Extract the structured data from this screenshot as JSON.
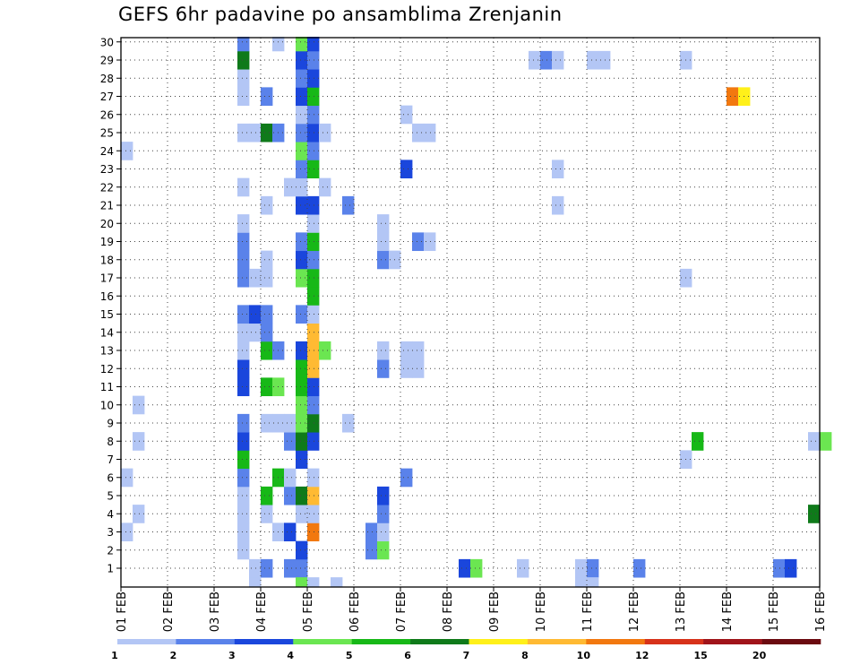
{
  "chart_data": {
    "type": "heatmap",
    "title": "GEFS 6hr padavine po ansamblima Zrenjanin",
    "x_tick_labels": [
      "01 FEB",
      "02 FEB",
      "03 FEB",
      "04 FEB",
      "05 FEB",
      "06 FEB",
      "07 FEB",
      "08 FEB",
      "09 FEB",
      "10 FEB",
      "11 FEB",
      "12 FEB",
      "13 FEB",
      "14 FEB",
      "15 FEB",
      "16 FEB"
    ],
    "y_members": [
      1,
      2,
      3,
      4,
      5,
      6,
      7,
      8,
      9,
      10,
      11,
      12,
      13,
      14,
      15,
      16,
      17,
      18,
      19,
      20,
      21,
      22,
      23,
      24,
      25,
      26,
      27,
      28,
      29,
      30
    ],
    "time_step_hours": 6,
    "grid": true,
    "legend_placement": "bottom",
    "legend": {
      "levels": [
        "1",
        "2",
        "3",
        "4",
        "5",
        "6",
        "7",
        "8",
        "10",
        "12",
        "15",
        "20"
      ],
      "colors": [
        "#b3c6f5",
        "#5a82ea",
        "#1a46dc",
        "#6be651",
        "#17b817",
        "#0f7a1a",
        "#fff01a",
        "#ffba33",
        "#f2780f",
        "#d7321a",
        "#a0141a",
        "#6b0a10"
      ]
    },
    "cells": [
      {
        "m": 1,
        "s": 11,
        "c": "#b3c6f5"
      },
      {
        "m": 1,
        "s": 12,
        "c": "#5a82ea"
      },
      {
        "m": 1,
        "s": 14,
        "c": "#5a82ea"
      },
      {
        "m": 1,
        "s": 15,
        "c": "#5a82ea"
      },
      {
        "m": 1,
        "s": 29,
        "c": "#1a46dc"
      },
      {
        "m": 1,
        "s": 30,
        "c": "#6be651"
      },
      {
        "m": 1,
        "s": 34,
        "c": "#b3c6f5"
      },
      {
        "m": 1,
        "s": 39,
        "c": "#b3c6f5"
      },
      {
        "m": 1,
        "s": 40,
        "c": "#5a82ea"
      },
      {
        "m": 1,
        "s": 44,
        "c": "#5a82ea"
      },
      {
        "m": 1,
        "s": 56,
        "c": "#5a82ea"
      },
      {
        "m": 1,
        "s": 57,
        "c": "#1a46dc"
      },
      {
        "m": 2,
        "s": 10,
        "c": "#b3c6f5"
      },
      {
        "m": 2,
        "s": 15,
        "c": "#1a46dc"
      },
      {
        "m": 2,
        "s": 21,
        "c": "#5a82ea"
      },
      {
        "m": 2,
        "s": 22,
        "c": "#6be651"
      },
      {
        "m": 3,
        "s": 0,
        "c": "#b3c6f5"
      },
      {
        "m": 3,
        "s": 10,
        "c": "#b3c6f5"
      },
      {
        "m": 3,
        "s": 13,
        "c": "#b3c6f5"
      },
      {
        "m": 3,
        "s": 14,
        "c": "#1a46dc"
      },
      {
        "m": 3,
        "s": 16,
        "c": "#f2780f"
      },
      {
        "m": 3,
        "s": 21,
        "c": "#5a82ea"
      },
      {
        "m": 3,
        "s": 22,
        "c": "#b3c6f5"
      },
      {
        "m": 4,
        "s": 1,
        "c": "#b3c6f5"
      },
      {
        "m": 4,
        "s": 10,
        "c": "#b3c6f5"
      },
      {
        "m": 4,
        "s": 12,
        "c": "#b3c6f5"
      },
      {
        "m": 4,
        "s": 15,
        "c": "#b3c6f5"
      },
      {
        "m": 4,
        "s": 16,
        "c": "#b3c6f5"
      },
      {
        "m": 4,
        "s": 22,
        "c": "#5a82ea"
      },
      {
        "m": 4,
        "s": 59,
        "c": "#0f7a1a"
      },
      {
        "m": 5,
        "s": 10,
        "c": "#b3c6f5"
      },
      {
        "m": 5,
        "s": 12,
        "c": "#17b817"
      },
      {
        "m": 5,
        "s": 14,
        "c": "#5a82ea"
      },
      {
        "m": 5,
        "s": 15,
        "c": "#0f7a1a"
      },
      {
        "m": 5,
        "s": 16,
        "c": "#ffba33"
      },
      {
        "m": 5,
        "s": 22,
        "c": "#1a46dc"
      },
      {
        "m": 6,
        "s": 0,
        "c": "#b3c6f5"
      },
      {
        "m": 6,
        "s": 10,
        "c": "#5a82ea"
      },
      {
        "m": 6,
        "s": 13,
        "c": "#17b817"
      },
      {
        "m": 6,
        "s": 14,
        "c": "#b3c6f5"
      },
      {
        "m": 6,
        "s": 16,
        "c": "#b3c6f5"
      },
      {
        "m": 6,
        "s": 24,
        "c": "#5a82ea"
      },
      {
        "m": 7,
        "s": 10,
        "c": "#17b817"
      },
      {
        "m": 7,
        "s": 15,
        "c": "#1a46dc"
      },
      {
        "m": 7,
        "s": 48,
        "c": "#b3c6f5"
      },
      {
        "m": 8,
        "s": 1,
        "c": "#b3c6f5"
      },
      {
        "m": 8,
        "s": 10,
        "c": "#1a46dc"
      },
      {
        "m": 8,
        "s": 14,
        "c": "#5a82ea"
      },
      {
        "m": 8,
        "s": 15,
        "c": "#0f7a1a"
      },
      {
        "m": 8,
        "s": 16,
        "c": "#1a46dc"
      },
      {
        "m": 8,
        "s": 49,
        "c": "#17b817"
      },
      {
        "m": 8,
        "s": 59,
        "c": "#b3c6f5"
      },
      {
        "m": 8,
        "s": 60,
        "c": "#6be651"
      },
      {
        "m": 9,
        "s": 10,
        "c": "#5a82ea"
      },
      {
        "m": 9,
        "s": 12,
        "c": "#b3c6f5"
      },
      {
        "m": 9,
        "s": 13,
        "c": "#b3c6f5"
      },
      {
        "m": 9,
        "s": 14,
        "c": "#b3c6f5"
      },
      {
        "m": 9,
        "s": 15,
        "c": "#6be651"
      },
      {
        "m": 9,
        "s": 16,
        "c": "#0f7a1a"
      },
      {
        "m": 9,
        "s": 19,
        "c": "#b3c6f5"
      },
      {
        "m": 10,
        "s": 1,
        "c": "#b3c6f5"
      },
      {
        "m": 10,
        "s": 15,
        "c": "#6be651"
      },
      {
        "m": 10,
        "s": 16,
        "c": "#5a82ea"
      },
      {
        "m": 11,
        "s": 10,
        "c": "#1a46dc"
      },
      {
        "m": 11,
        "s": 12,
        "c": "#17b817"
      },
      {
        "m": 11,
        "s": 13,
        "c": "#6be651"
      },
      {
        "m": 11,
        "s": 15,
        "c": "#17b817"
      },
      {
        "m": 11,
        "s": 16,
        "c": "#1a46dc"
      },
      {
        "m": 12,
        "s": 10,
        "c": "#1a46dc"
      },
      {
        "m": 12,
        "s": 15,
        "c": "#17b817"
      },
      {
        "m": 12,
        "s": 16,
        "c": "#ffba33"
      },
      {
        "m": 12,
        "s": 22,
        "c": "#5a82ea"
      },
      {
        "m": 12,
        "s": 24,
        "c": "#b3c6f5"
      },
      {
        "m": 12,
        "s": 25,
        "c": "#b3c6f5"
      },
      {
        "m": 13,
        "s": 10,
        "c": "#b3c6f5"
      },
      {
        "m": 13,
        "s": 12,
        "c": "#17b817"
      },
      {
        "m": 13,
        "s": 13,
        "c": "#5a82ea"
      },
      {
        "m": 13,
        "s": 15,
        "c": "#1a46dc"
      },
      {
        "m": 13,
        "s": 16,
        "c": "#ffba33"
      },
      {
        "m": 13,
        "s": 17,
        "c": "#6be651"
      },
      {
        "m": 13,
        "s": 22,
        "c": "#b3c6f5"
      },
      {
        "m": 13,
        "s": 24,
        "c": "#b3c6f5"
      },
      {
        "m": 13,
        "s": 25,
        "c": "#b3c6f5"
      },
      {
        "m": 14,
        "s": 10,
        "c": "#b3c6f5"
      },
      {
        "m": 14,
        "s": 11,
        "c": "#b3c6f5"
      },
      {
        "m": 14,
        "s": 12,
        "c": "#5a82ea"
      },
      {
        "m": 14,
        "s": 16,
        "c": "#ffba33"
      },
      {
        "m": 15,
        "s": 10,
        "c": "#5a82ea"
      },
      {
        "m": 15,
        "s": 11,
        "c": "#1a46dc"
      },
      {
        "m": 15,
        "s": 12,
        "c": "#5a82ea"
      },
      {
        "m": 15,
        "s": 15,
        "c": "#5a82ea"
      },
      {
        "m": 15,
        "s": 16,
        "c": "#b3c6f5"
      },
      {
        "m": 16,
        "s": 16,
        "c": "#17b817"
      },
      {
        "m": 17,
        "s": 10,
        "c": "#5a82ea"
      },
      {
        "m": 17,
        "s": 11,
        "c": "#b3c6f5"
      },
      {
        "m": 17,
        "s": 12,
        "c": "#b3c6f5"
      },
      {
        "m": 17,
        "s": 15,
        "c": "#6be651"
      },
      {
        "m": 17,
        "s": 16,
        "c": "#17b817"
      },
      {
        "m": 17,
        "s": 48,
        "c": "#b3c6f5"
      },
      {
        "m": 18,
        "s": 10,
        "c": "#5a82ea"
      },
      {
        "m": 18,
        "s": 12,
        "c": "#b3c6f5"
      },
      {
        "m": 18,
        "s": 15,
        "c": "#1a46dc"
      },
      {
        "m": 18,
        "s": 16,
        "c": "#5a82ea"
      },
      {
        "m": 18,
        "s": 22,
        "c": "#5a82ea"
      },
      {
        "m": 18,
        "s": 23,
        "c": "#b3c6f5"
      },
      {
        "m": 19,
        "s": 10,
        "c": "#5a82ea"
      },
      {
        "m": 19,
        "s": 15,
        "c": "#5a82ea"
      },
      {
        "m": 19,
        "s": 16,
        "c": "#17b817"
      },
      {
        "m": 19,
        "s": 22,
        "c": "#b3c6f5"
      },
      {
        "m": 19,
        "s": 25,
        "c": "#5a82ea"
      },
      {
        "m": 19,
        "s": 26,
        "c": "#b3c6f5"
      },
      {
        "m": 20,
        "s": 10,
        "c": "#b3c6f5"
      },
      {
        "m": 20,
        "s": 16,
        "c": "#b3c6f5"
      },
      {
        "m": 20,
        "s": 22,
        "c": "#b3c6f5"
      },
      {
        "m": 21,
        "s": 12,
        "c": "#b3c6f5"
      },
      {
        "m": 21,
        "s": 15,
        "c": "#1a46dc"
      },
      {
        "m": 21,
        "s": 16,
        "c": "#1a46dc"
      },
      {
        "m": 21,
        "s": 19,
        "c": "#5a82ea"
      },
      {
        "m": 21,
        "s": 37,
        "c": "#b3c6f5"
      },
      {
        "m": 22,
        "s": 10,
        "c": "#b3c6f5"
      },
      {
        "m": 22,
        "s": 14,
        "c": "#b3c6f5"
      },
      {
        "m": 22,
        "s": 15,
        "c": "#b3c6f5"
      },
      {
        "m": 22,
        "s": 17,
        "c": "#b3c6f5"
      },
      {
        "m": 23,
        "s": 15,
        "c": "#5a82ea"
      },
      {
        "m": 23,
        "s": 16,
        "c": "#17b817"
      },
      {
        "m": 23,
        "s": 24,
        "c": "#1a46dc"
      },
      {
        "m": 23,
        "s": 37,
        "c": "#b3c6f5"
      },
      {
        "m": 24,
        "s": 0,
        "c": "#b3c6f5"
      },
      {
        "m": 24,
        "s": 15,
        "c": "#6be651"
      },
      {
        "m": 24,
        "s": 16,
        "c": "#5a82ea"
      },
      {
        "m": 25,
        "s": 10,
        "c": "#b3c6f5"
      },
      {
        "m": 25,
        "s": 11,
        "c": "#b3c6f5"
      },
      {
        "m": 25,
        "s": 12,
        "c": "#0f7a1a"
      },
      {
        "m": 25,
        "s": 13,
        "c": "#5a82ea"
      },
      {
        "m": 25,
        "s": 15,
        "c": "#5a82ea"
      },
      {
        "m": 25,
        "s": 16,
        "c": "#1a46dc"
      },
      {
        "m": 25,
        "s": 17,
        "c": "#b3c6f5"
      },
      {
        "m": 25,
        "s": 25,
        "c": "#b3c6f5"
      },
      {
        "m": 25,
        "s": 26,
        "c": "#b3c6f5"
      },
      {
        "m": 26,
        "s": 15,
        "c": "#b3c6f5"
      },
      {
        "m": 26,
        "s": 16,
        "c": "#5a82ea"
      },
      {
        "m": 26,
        "s": 24,
        "c": "#b3c6f5"
      },
      {
        "m": 27,
        "s": 10,
        "c": "#b3c6f5"
      },
      {
        "m": 27,
        "s": 12,
        "c": "#5a82ea"
      },
      {
        "m": 27,
        "s": 15,
        "c": "#1a46dc"
      },
      {
        "m": 27,
        "s": 16,
        "c": "#17b817"
      },
      {
        "m": 27,
        "s": 52,
        "c": "#f2780f"
      },
      {
        "m": 27,
        "s": 53,
        "c": "#fff01a"
      },
      {
        "m": 28,
        "s": 10,
        "c": "#b3c6f5"
      },
      {
        "m": 28,
        "s": 15,
        "c": "#5a82ea"
      },
      {
        "m": 28,
        "s": 16,
        "c": "#1a46dc"
      },
      {
        "m": 29,
        "s": 10,
        "c": "#0f7a1a"
      },
      {
        "m": 29,
        "s": 15,
        "c": "#1a46dc"
      },
      {
        "m": 29,
        "s": 16,
        "c": "#5a82ea"
      },
      {
        "m": 29,
        "s": 35,
        "c": "#b3c6f5"
      },
      {
        "m": 29,
        "s": 36,
        "c": "#5a82ea"
      },
      {
        "m": 29,
        "s": 37,
        "c": "#b3c6f5"
      },
      {
        "m": 29,
        "s": 40,
        "c": "#b3c6f5"
      },
      {
        "m": 29,
        "s": 41,
        "c": "#b3c6f5"
      },
      {
        "m": 29,
        "s": 48,
        "c": "#b3c6f5"
      },
      {
        "m": 30,
        "s": 10,
        "c": "#5a82ea"
      },
      {
        "m": 30,
        "s": 13,
        "c": "#b3c6f5"
      },
      {
        "m": 30,
        "s": 15,
        "c": "#6be651"
      },
      {
        "m": 30,
        "s": 16,
        "c": "#1a46dc"
      },
      {
        "m": 0,
        "s": 11,
        "c": "#b3c6f5"
      },
      {
        "m": 0,
        "s": 15,
        "c": "#6be651"
      },
      {
        "m": 0,
        "s": 16,
        "c": "#b3c6f5"
      },
      {
        "m": 0,
        "s": 18,
        "c": "#b3c6f5"
      },
      {
        "m": 0,
        "s": 39,
        "c": "#b3c6f5"
      },
      {
        "m": 0,
        "s": 40,
        "c": "#b3c6f5"
      }
    ]
  }
}
